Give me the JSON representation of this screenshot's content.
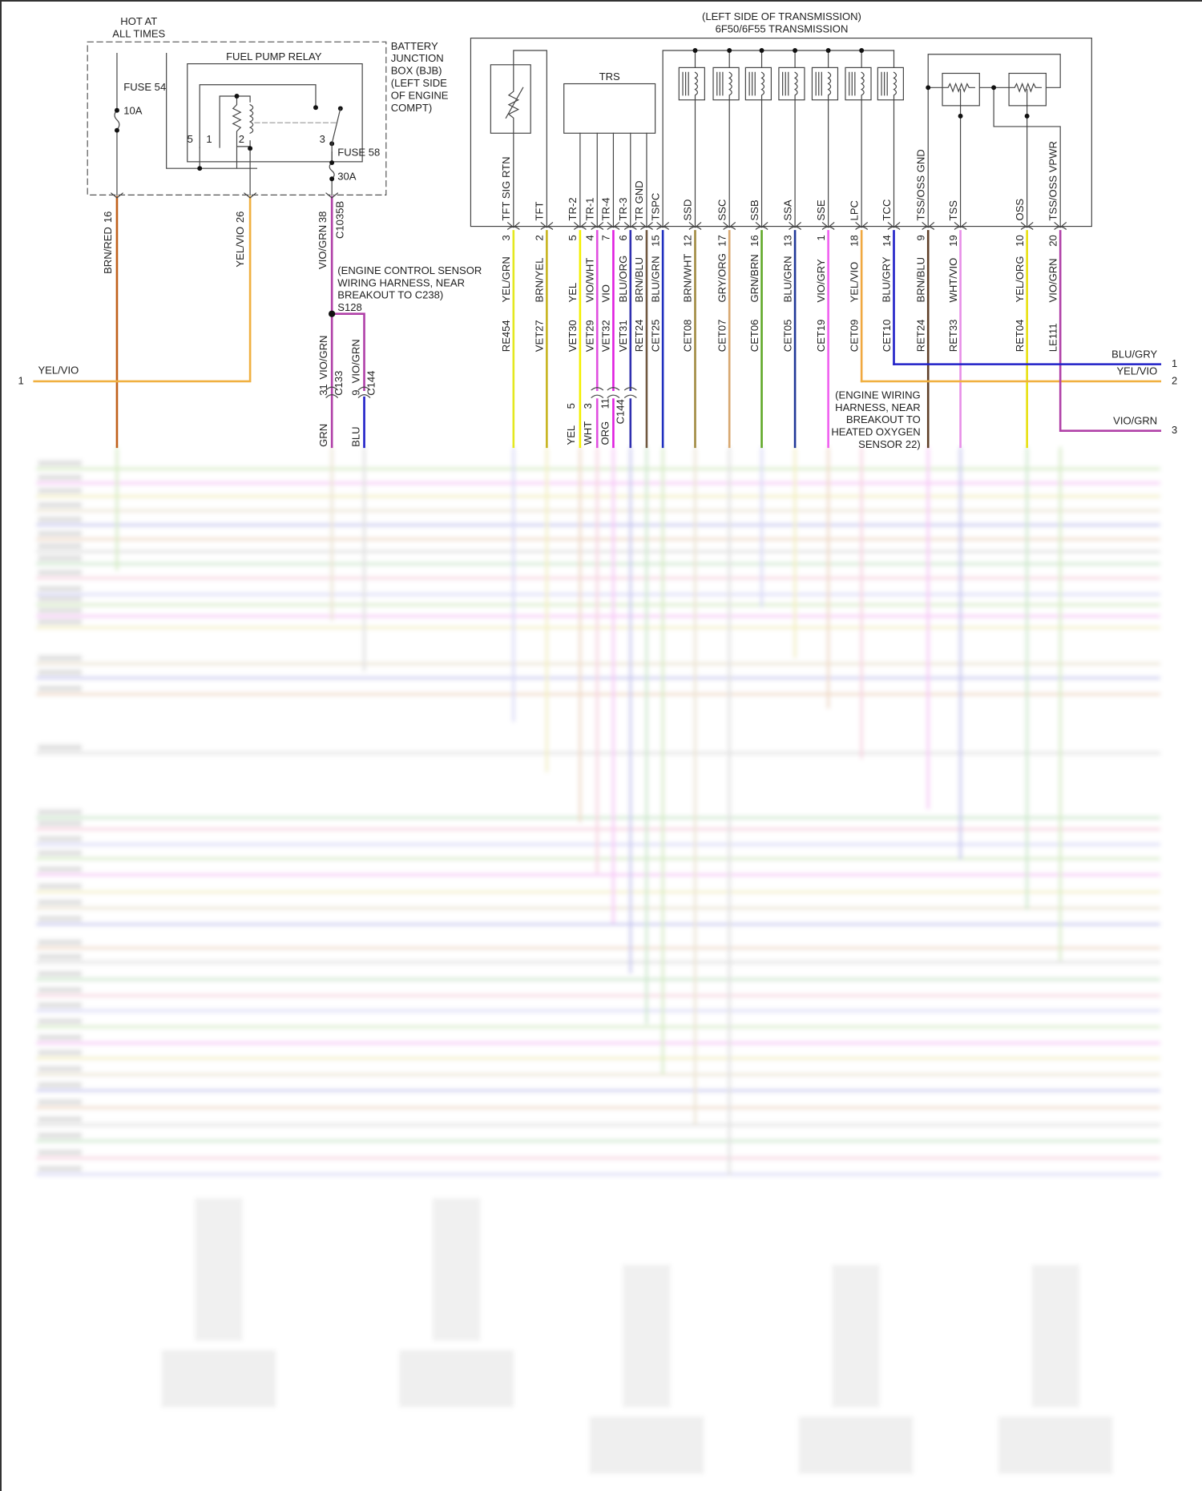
{
  "power": {
    "hot_line1": "HOT AT",
    "hot_line2": "ALL TIMES",
    "fuse54": "FUSE 54",
    "fuse54_rating": "10A",
    "fuse58": "FUSE 58",
    "fuse58_rating": "30A",
    "relay_title": "FUEL PUMP RELAY",
    "relay_pins": [
      "5",
      "1",
      "2",
      "3"
    ],
    "bjb_label": [
      "BATTERY",
      "JUNCTION",
      "BOX (BJB)",
      "(LEFT SIDE",
      "OF ENGINE",
      "COMPT)"
    ],
    "bjb_pins": [
      {
        "pin": "16",
        "wire": "BRN/RED",
        "color": "#c0601a"
      },
      {
        "pin": "26",
        "wire": "YEL/VIO",
        "color": "#f0b040"
      },
      {
        "pin": "38",
        "wire": "VIO/GRN",
        "color": "#b040a8"
      }
    ],
    "bjb_connector": "C1035B",
    "splice_note": [
      "(ENGINE CONTROL SENSOR",
      "WIRING HARNESS, NEAR",
      "BREAKOUT TO C238)"
    ],
    "splice": "S128",
    "c133": {
      "pin": "31",
      "wire": "VIO/GRN",
      "connector": "C133",
      "below": "GRN"
    },
    "c144": {
      "pin": "9",
      "wire": "VIO/GRN",
      "connector": "C144",
      "below": "BLU"
    },
    "left_feed": {
      "num": "1",
      "wire": "YEL/VIO"
    }
  },
  "transmission": {
    "title1": "(LEFT SIDE OF TRANSMISSION)",
    "title2": "6F50/6F55 TRANSMISSION",
    "trs_label": "TRS",
    "pins": [
      {
        "label": "TFT SIG RTN",
        "pin": "3",
        "wire": "YEL/GRN",
        "circuit": "RE454",
        "color": "#e4e820"
      },
      {
        "label": "TFT",
        "pin": "2",
        "wire": "BRN/YEL",
        "circuit": "VET27",
        "color": "#c8b420"
      },
      {
        "label": "TR-2",
        "pin": "5",
        "wire": "YEL",
        "circuit": "VET30",
        "color": "#f4f000"
      },
      {
        "label": "TR-1",
        "pin": "4",
        "wire": "VIO/WHT",
        "circuit": "VET29",
        "color": "#e050e0"
      },
      {
        "label": "TR-4",
        "pin": "7",
        "wire": "VIO",
        "circuit": "VET32",
        "color": "#e020e0"
      },
      {
        "label": "TR-3",
        "pin": "6",
        "wire": "BLU/ORG",
        "circuit": "VET31",
        "color": "#3030b0"
      },
      {
        "label": "TR GND",
        "pin": "8",
        "wire": "BRN/BLU",
        "circuit": "RET24",
        "color": "#705840"
      },
      {
        "label": "TSPC",
        "pin": "15",
        "wire": "BLU/GRN",
        "circuit": "CET25",
        "color": "#2030c0"
      },
      {
        "label": "SSD",
        "pin": "12",
        "wire": "BRN/WHT",
        "circuit": "CET08",
        "color": "#a08a40"
      },
      {
        "label": "SSC",
        "pin": "17",
        "wire": "GRY/ORG",
        "circuit": "CET07",
        "color": "#d8a870"
      },
      {
        "label": "SSB",
        "pin": "16",
        "wire": "GRN/BRN",
        "circuit": "CET06",
        "color": "#60a828"
      },
      {
        "label": "SSA",
        "pin": "13",
        "wire": "BLU/GRN",
        "circuit": "CET05",
        "color": "#203898"
      },
      {
        "label": "SSE",
        "pin": "1",
        "wire": "VIO/GRY",
        "circuit": "CET19",
        "color": "#f060f0"
      },
      {
        "label": "LPC",
        "pin": "18",
        "wire": "YEL/VIO",
        "circuit": "CET09",
        "color": "#f0a840"
      },
      {
        "label": "TCC",
        "pin": "14",
        "wire": "BLU/GRY",
        "circuit": "CET10",
        "color": "#2020c8"
      },
      {
        "label": "TSS/OSS GND",
        "pin": "9",
        "wire": "BRN/BLU",
        "circuit": "RET24",
        "color": "#604028"
      },
      {
        "label": "TSS",
        "pin": "19",
        "wire": "WHT/VIO",
        "circuit": "RET33",
        "color": "#e890e8"
      },
      {
        "label": "OSS",
        "pin": "10",
        "wire": "YEL/ORG",
        "circuit": "RET04",
        "color": "#e8e010"
      },
      {
        "label": "TSS/OSS VPWR",
        "pin": "20",
        "wire": "VIO/GRN",
        "circuit": "LE111",
        "color": "#b040a8"
      }
    ],
    "c144": {
      "connector": "C144",
      "pins": [
        "5",
        "3",
        "11"
      ],
      "below": [
        "YEL",
        "WHT",
        "ORG"
      ]
    },
    "note": [
      "(ENGINE WIRING",
      "HARNESS, NEAR",
      "BREAKOUT TO",
      "HEATED OXYGEN",
      "SENSOR 22)"
    ],
    "right_feeds": [
      {
        "num": "1",
        "wire": "BLU/GRY"
      },
      {
        "num": "2",
        "wire": "YEL/VIO"
      },
      {
        "num": "3",
        "wire": "VIO/GRN"
      }
    ]
  }
}
